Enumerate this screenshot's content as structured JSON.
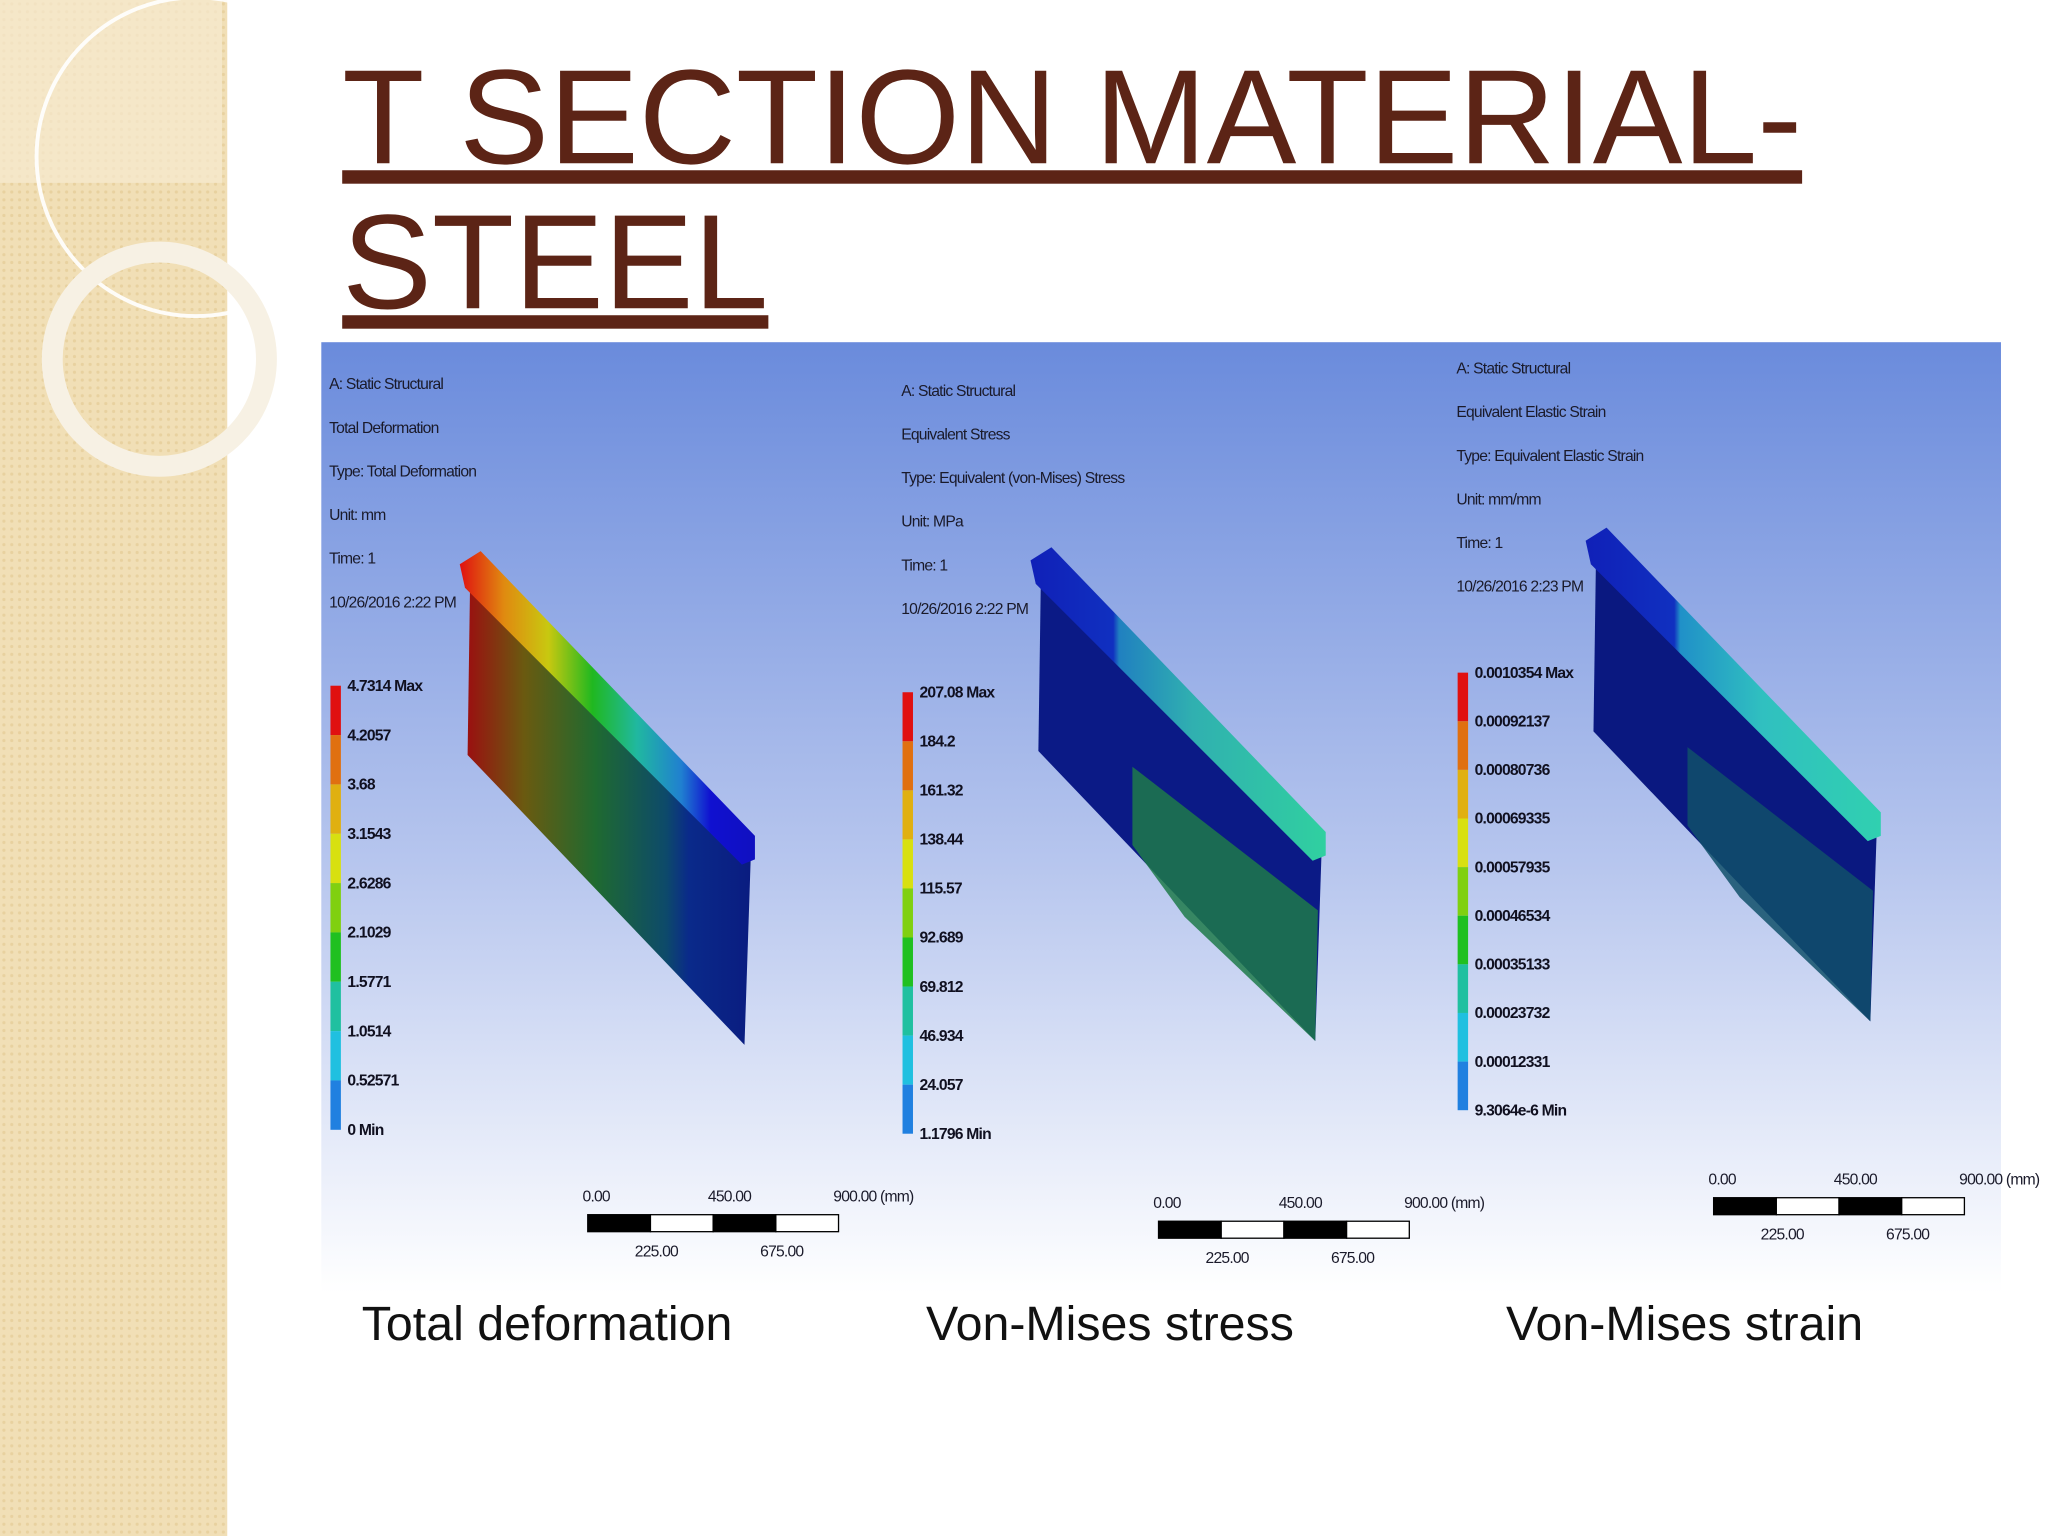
{
  "title_lines": [
    "T SECTION MATERIAL-",
    "STEEL"
  ],
  "panels": [
    {
      "header": [
        "A: Static Structural",
        "Total Deformation",
        "Type: Total Deformation",
        "Unit: mm",
        "Time: 1",
        "10/26/2016 2:22 PM"
      ],
      "legend": [
        "4.7314 Max",
        "4.2057",
        "3.68",
        "3.1543",
        "2.6286",
        "2.1029",
        "1.5771",
        "1.0514",
        "0.52571",
        "0 Min"
      ],
      "scale_top": [
        "0.00",
        "450.00",
        "900.00 (mm)"
      ],
      "scale_bottom": [
        "225.00",
        "675.00"
      ],
      "caption": "Total deformation"
    },
    {
      "header": [
        "A: Static Structural",
        "Equivalent Stress",
        "Type: Equivalent (von-Mises) Stress",
        "Unit: MPa",
        "Time: 1",
        "10/26/2016 2:22 PM"
      ],
      "legend": [
        "207.08 Max",
        "184.2",
        "161.32",
        "138.44",
        "115.57",
        "92.689",
        "69.812",
        "46.934",
        "24.057",
        "1.1796 Min"
      ],
      "scale_top": [
        "0.00",
        "450.00",
        "900.00 (mm)"
      ],
      "scale_bottom": [
        "225.00",
        "675.00"
      ],
      "caption": "Von-Mises stress"
    },
    {
      "header": [
        "A: Static Structural",
        "Equivalent Elastic Strain",
        "Type: Equivalent Elastic Strain",
        "Unit: mm/mm",
        "Time: 1",
        "10/26/2016 2:23 PM"
      ],
      "legend": [
        "0.0010354 Max",
        "0.00092137",
        "0.00080736",
        "0.00069335",
        "0.00057935",
        "0.00046534",
        "0.00035133",
        "0.00023732",
        "0.00012331",
        "9.3064e-6 Min"
      ],
      "scale_top": [
        "0.00",
        "450.00",
        "900.00 (mm)"
      ],
      "scale_bottom": [
        "225.00",
        "675.00"
      ],
      "caption": "Von-Mises strain"
    }
  ]
}
